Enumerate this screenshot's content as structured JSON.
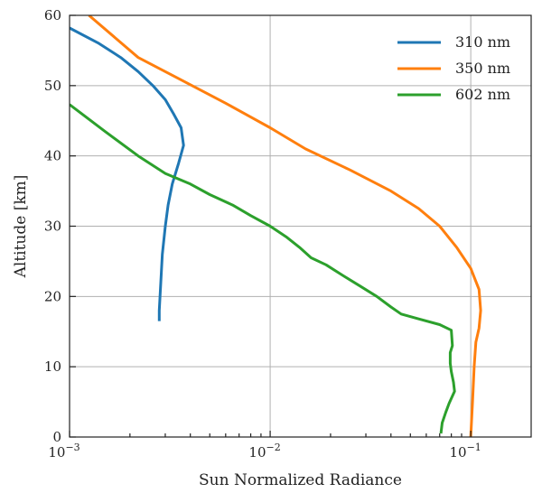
{
  "chart_data": {
    "type": "line",
    "xlabel": "Sun Normalized Radiance",
    "ylabel": "Altitude [km]",
    "x_scale": "log",
    "xlim": [
      0.001,
      0.2
    ],
    "ylim": [
      0,
      60
    ],
    "x_ticks": [
      {
        "value": 0.001,
        "base": "10",
        "exp": "−3"
      },
      {
        "value": 0.01,
        "base": "10",
        "exp": "−2"
      },
      {
        "value": 0.1,
        "base": "10",
        "exp": "−1"
      }
    ],
    "y_ticks": [
      0,
      10,
      20,
      30,
      40,
      50,
      60
    ],
    "grid": true,
    "legend_position": "top-right",
    "series": [
      {
        "name": "310 nm",
        "color": "#1f77b4",
        "points": [
          [
            0.0028,
            16.5
          ],
          [
            0.0028,
            18
          ],
          [
            0.00285,
            22
          ],
          [
            0.0029,
            26
          ],
          [
            0.003,
            30
          ],
          [
            0.0031,
            33
          ],
          [
            0.00325,
            36
          ],
          [
            0.0035,
            39
          ],
          [
            0.0037,
            41.5
          ],
          [
            0.0036,
            44
          ],
          [
            0.0033,
            46
          ],
          [
            0.003,
            48
          ],
          [
            0.0026,
            50
          ],
          [
            0.0022,
            52
          ],
          [
            0.0018,
            54
          ],
          [
            0.0014,
            56
          ],
          [
            0.001,
            58.2
          ]
        ]
      },
      {
        "name": "350 nm",
        "color": "#ff7f0e",
        "points": [
          [
            0.1,
            0
          ],
          [
            0.102,
            5
          ],
          [
            0.104,
            10
          ],
          [
            0.106,
            13.5
          ],
          [
            0.11,
            15.5
          ],
          [
            0.112,
            18
          ],
          [
            0.11,
            21
          ],
          [
            0.1,
            24
          ],
          [
            0.085,
            27
          ],
          [
            0.07,
            30
          ],
          [
            0.055,
            32.5
          ],
          [
            0.04,
            35
          ],
          [
            0.025,
            38
          ],
          [
            0.015,
            41
          ],
          [
            0.01,
            44
          ],
          [
            0.006,
            47.5
          ],
          [
            0.0035,
            51
          ],
          [
            0.0022,
            54
          ],
          [
            0.00125,
            60
          ]
        ]
      },
      {
        "name": "602 nm",
        "color": "#2ca02c",
        "points": [
          [
            0.071,
            0.5
          ],
          [
            0.072,
            2
          ],
          [
            0.075,
            3.5
          ],
          [
            0.078,
            4.8
          ],
          [
            0.083,
            6.5
          ],
          [
            0.082,
            7.8
          ],
          [
            0.08,
            9.3
          ],
          [
            0.079,
            10.5
          ],
          [
            0.079,
            12
          ],
          [
            0.081,
            13
          ],
          [
            0.08,
            15.2
          ],
          [
            0.07,
            16
          ],
          [
            0.055,
            16.8
          ],
          [
            0.045,
            17.5
          ],
          [
            0.04,
            18.5
          ],
          [
            0.034,
            20
          ],
          [
            0.028,
            21.5
          ],
          [
            0.023,
            23
          ],
          [
            0.019,
            24.5
          ],
          [
            0.016,
            25.5
          ],
          [
            0.014,
            27
          ],
          [
            0.012,
            28.5
          ],
          [
            0.01,
            30
          ],
          [
            0.008,
            31.5
          ],
          [
            0.0065,
            33
          ],
          [
            0.005,
            34.5
          ],
          [
            0.004,
            36
          ],
          [
            0.003,
            37.5
          ],
          [
            0.0022,
            40
          ],
          [
            0.0015,
            43.5
          ],
          [
            0.001,
            47.3
          ]
        ]
      }
    ]
  }
}
